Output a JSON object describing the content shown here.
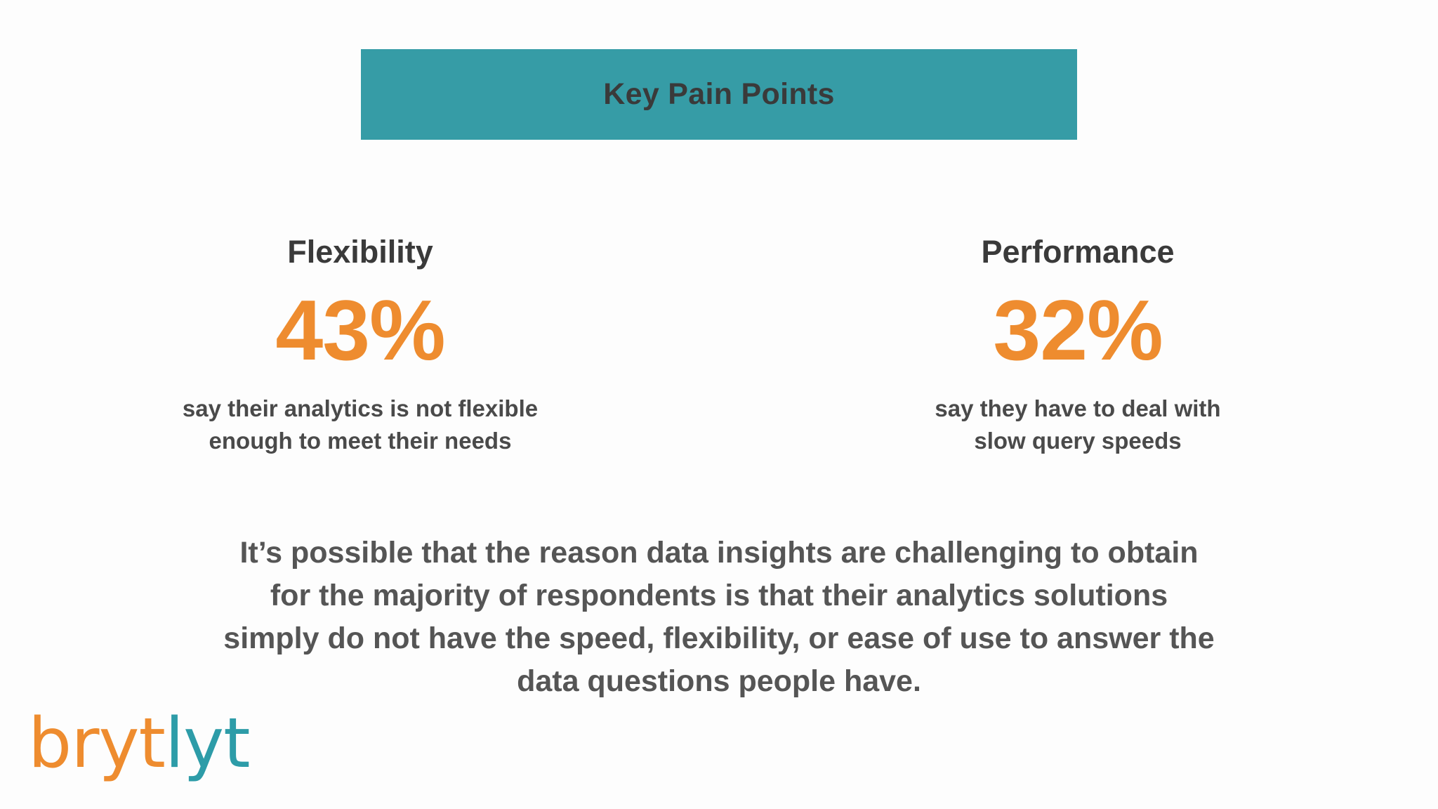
{
  "title": "Key Pain Points",
  "stats": [
    {
      "heading": "Flexibility",
      "value": "43%",
      "description_lines": [
        "say their analytics is not flexible",
        "enough to meet their needs"
      ]
    },
    {
      "heading": "Performance",
      "value": "32%",
      "description_lines": [
        "say they have to deal with",
        "slow query speeds"
      ]
    }
  ],
  "body_lines": [
    "It’s possible that the reason data insights are challenging to obtain",
    "for the majority of respondents is that their analytics solutions",
    "simply do not have the speed, flexibility, or ease of use to answer the",
    "data questions people have."
  ],
  "logo": {
    "part1": "bryt",
    "part2": "lyt"
  },
  "colors": {
    "banner": "#369ca6",
    "accent_orange": "#ee8c2f",
    "logo_teal": "#2d9ca8",
    "heading_text": "#3a3a3a",
    "body_text": "#555555"
  }
}
